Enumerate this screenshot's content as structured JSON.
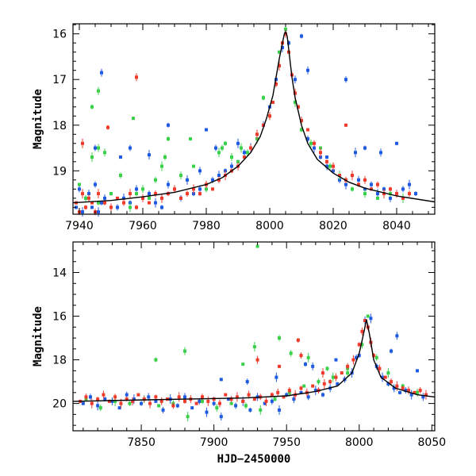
{
  "chart_data": [
    {
      "type": "scatter",
      "panel": "top",
      "xlim": [
        7938,
        8052
      ],
      "ylim": [
        19.95,
        15.78
      ],
      "y_inverted": true,
      "xlabel": "",
      "ylabel": "Magnitude",
      "x_ticks": [
        7940,
        7960,
        7980,
        8000,
        8020,
        8040
      ],
      "y_ticks": [
        16,
        17,
        18,
        19
      ],
      "model_curve": {
        "x": [
          7938,
          7950,
          7960,
          7970,
          7980,
          7985,
          7990,
          7994,
          7997,
          7999,
          8001,
          8002,
          8003,
          8004,
          8004.6,
          8005,
          8005.5,
          8006,
          8007,
          8008,
          8010,
          8012,
          8015,
          8020,
          8025,
          8030,
          8040,
          8052
        ],
        "y": [
          19.7,
          19.65,
          19.57,
          19.47,
          19.3,
          19.15,
          18.9,
          18.6,
          18.25,
          17.85,
          17.35,
          16.95,
          16.55,
          16.2,
          16.0,
          15.95,
          16.05,
          16.35,
          16.95,
          17.4,
          18.0,
          18.4,
          18.75,
          19.05,
          19.25,
          19.38,
          19.55,
          19.68
        ]
      },
      "series": [
        {
          "name": "blue",
          "color": "#1f5be0",
          "x": [
            7939,
            7940,
            7941,
            7942,
            7943,
            7944,
            7945,
            7946,
            7947,
            7948,
            7950,
            7952,
            7954,
            7956,
            7958,
            7960,
            7962,
            7964,
            7966,
            7968,
            7970,
            7972,
            7974,
            7976,
            7978,
            7980,
            7982,
            7984,
            7986,
            7988,
            7990,
            7992,
            7994,
            7996,
            7998,
            8000,
            8002,
            8004,
            8006,
            8008,
            8010,
            8012,
            8014,
            8016,
            8018,
            8020,
            8022,
            8024,
            8026,
            8028,
            8030,
            8032,
            8034,
            8036,
            8038,
            8040,
            8042,
            8044,
            8046,
            7947,
            7953,
            7956,
            7962,
            7968,
            7978,
            7980,
            7983,
            7990,
            8010,
            8012,
            8018,
            8024,
            8027,
            8030,
            8035,
            8040,
            7945
          ],
          "y": [
            19.8,
            19.4,
            19.9,
            19.6,
            19.5,
            19.8,
            19.3,
            19.9,
            19.7,
            19.6,
            19.5,
            19.8,
            19.6,
            19.7,
            19.4,
            19.6,
            19.5,
            19.7,
            19.8,
            19.3,
            19.4,
            19.6,
            19.2,
            19.5,
            19.4,
            19.3,
            19.2,
            19.1,
            19.0,
            18.9,
            18.8,
            18.6,
            18.5,
            18.3,
            18.0,
            17.6,
            17.0,
            16.3,
            16.2,
            17.0,
            17.9,
            18.3,
            18.5,
            18.7,
            18.9,
            19.0,
            19.2,
            19.3,
            19.1,
            19.2,
            19.4,
            19.3,
            19.5,
            19.4,
            19.6,
            19.5,
            19.4,
            19.3,
            19.5,
            16.85,
            18.7,
            18.5,
            18.65,
            18.0,
            19.0,
            18.1,
            18.5,
            18.4,
            16.05,
            16.8,
            18.7,
            17.0,
            18.6,
            18.5,
            18.6,
            18.4,
            18.5
          ]
        },
        {
          "name": "green",
          "color": "#39d04a",
          "x": [
            7940,
            7942,
            7944,
            7946,
            7948,
            7950,
            7953,
            7956,
            7958,
            7960,
            7962,
            7964,
            7966,
            7968,
            7972,
            7976,
            7980,
            7984,
            7986,
            7988,
            7990,
            7993,
            7996,
            7998,
            8000,
            8003,
            8005,
            8008,
            8010,
            8013,
            8016,
            8019,
            8022,
            8026,
            8030,
            8034,
            8038,
            8042,
            7944,
            7946,
            7957,
            7985,
            7991,
            7998,
            7946,
            7975,
            7967
          ],
          "y": [
            19.3,
            19.6,
            18.7,
            19.7,
            18.6,
            19.5,
            19.1,
            19.8,
            19.5,
            19.4,
            19.6,
            19.2,
            18.9,
            18.3,
            19.1,
            18.9,
            19.4,
            18.6,
            18.4,
            18.7,
            18.8,
            18.6,
            18.3,
            17.4,
            17.8,
            16.4,
            15.9,
            17.5,
            18.1,
            18.4,
            18.5,
            18.9,
            19.1,
            19.4,
            19.5,
            19.6,
            19.5,
            19.6,
            17.6,
            17.25,
            17.85,
            18.5,
            18.5,
            17.4,
            18.5,
            18.3,
            18.7
          ]
        },
        {
          "name": "red",
          "color": "#ef3b2c",
          "x": [
            7939,
            7940,
            7941,
            7942,
            7943,
            7944,
            7945,
            7946,
            7948,
            7950,
            7952,
            7954,
            7956,
            7958,
            7960,
            7962,
            7964,
            7966,
            7968,
            7970,
            7972,
            7974,
            7976,
            7978,
            7980,
            7982,
            7984,
            7986,
            7988,
            7990,
            7992,
            7994,
            7996,
            7998,
            8000,
            8001,
            8002,
            8003,
            8004,
            8005,
            8006,
            8007,
            8008,
            8009,
            8010,
            8012,
            8014,
            8016,
            8018,
            8020,
            8022,
            8024,
            8026,
            8028,
            8030,
            8032,
            8034,
            8036,
            8038,
            8040,
            8042,
            8044,
            7941,
            7949,
            7958,
            8024
          ],
          "y": [
            19.7,
            19.9,
            19.5,
            19.8,
            19.6,
            19.7,
            19.9,
            19.5,
            19.7,
            19.8,
            19.6,
            19.7,
            19.5,
            19.8,
            19.6,
            19.7,
            19.5,
            19.6,
            19.5,
            19.4,
            19.6,
            19.5,
            19.4,
            19.5,
            19.3,
            19.4,
            19.2,
            19.1,
            19.0,
            18.9,
            18.7,
            18.5,
            18.2,
            18.0,
            17.8,
            17.5,
            17.1,
            16.7,
            16.2,
            16.0,
            16.4,
            16.9,
            17.3,
            17.6,
            17.9,
            18.1,
            18.4,
            18.6,
            18.8,
            18.9,
            19.1,
            19.2,
            19.1,
            19.3,
            19.2,
            19.4,
            19.3,
            19.5,
            19.4,
            19.5,
            19.6,
            19.5,
            18.4,
            18.05,
            16.95,
            18.0
          ]
        }
      ]
    },
    {
      "type": "scatter",
      "panel": "bottom",
      "xlim": [
        7803,
        8052
      ],
      "ylim": [
        21.25,
        12.6
      ],
      "y_inverted": true,
      "xlabel": "HJD−2450000",
      "ylabel": "Magnitude",
      "x_ticks": [
        7850,
        7900,
        7950,
        8000,
        8050
      ],
      "y_ticks": [
        14,
        16,
        18,
        20
      ],
      "model_curve": {
        "x": [
          7803,
          7840,
          7880,
          7920,
          7950,
          7970,
          7985,
          7995,
          8000,
          8003,
          8005,
          8007,
          8010,
          8015,
          8025,
          8040,
          8052
        ],
        "y": [
          19.9,
          19.85,
          19.8,
          19.75,
          19.65,
          19.45,
          19.2,
          18.6,
          17.7,
          16.8,
          16.15,
          16.8,
          18.0,
          18.8,
          19.3,
          19.6,
          19.7
        ]
      },
      "series": [
        {
          "name": "blue",
          "color": "#1f5be0",
          "x": [
            7810,
            7815,
            7820,
            7825,
            7830,
            7835,
            7840,
            7845,
            7850,
            7855,
            7860,
            7865,
            7870,
            7875,
            7880,
            7885,
            7890,
            7895,
            7900,
            7905,
            7910,
            7915,
            7920,
            7925,
            7930,
            7935,
            7940,
            7945,
            7950,
            7955,
            7960,
            7965,
            7970,
            7975,
            7980,
            7985,
            7990,
            7995,
            8000,
            8004,
            8008,
            8012,
            8016,
            8020,
            8024,
            8028,
            8032,
            8036,
            8040,
            8044,
            7905,
            7923,
            7943,
            7963,
            7968,
            7984,
            7998,
            8008,
            8022,
            8026,
            8040
          ],
          "y": [
            20.0,
            19.7,
            20.1,
            19.8,
            19.9,
            20.2,
            19.6,
            19.8,
            20.0,
            19.7,
            19.9,
            20.3,
            19.8,
            20.1,
            19.7,
            20.2,
            19.9,
            20.4,
            20.0,
            20.6,
            19.8,
            20.1,
            19.9,
            20.3,
            19.7,
            20.0,
            19.9,
            20.3,
            19.6,
            19.8,
            19.5,
            19.7,
            19.4,
            19.6,
            19.3,
            19.1,
            18.9,
            18.6,
            17.8,
            16.2,
            17.2,
            18.3,
            18.8,
            19.1,
            19.3,
            19.5,
            19.4,
            19.6,
            19.5,
            19.7,
            18.9,
            19.0,
            18.8,
            18.2,
            18.3,
            18.0,
            17.9,
            16.1,
            17.6,
            16.9,
            18.5
          ]
        },
        {
          "name": "green",
          "color": "#39d04a",
          "x": [
            7812,
            7822,
            7832,
            7842,
            7852,
            7862,
            7872,
            7882,
            7892,
            7902,
            7912,
            7922,
            7932,
            7942,
            7952,
            7962,
            7972,
            7982,
            7992,
            8002,
            8006,
            8012,
            8020,
            8030,
            8040,
            7930,
            7945,
            7928,
            7860,
            7880,
            7920,
            7953,
            7965,
            7978,
            7992
          ],
          "y": [
            19.8,
            20.2,
            19.9,
            20.0,
            19.8,
            20.1,
            20.0,
            20.6,
            19.9,
            20.2,
            20.0,
            20.1,
            20.3,
            19.8,
            19.5,
            19.2,
            19.0,
            18.8,
            18.4,
            17.3,
            16.0,
            17.9,
            18.6,
            19.2,
            19.5,
            12.8,
            17.0,
            17.4,
            18.0,
            17.6,
            18.2,
            17.7,
            17.9,
            18.4,
            18.6
          ]
        },
        {
          "name": "red",
          "color": "#ef3b2c",
          "x": [
            7808,
            7812,
            7816,
            7820,
            7824,
            7828,
            7832,
            7836,
            7840,
            7844,
            7848,
            7852,
            7856,
            7860,
            7864,
            7868,
            7872,
            7876,
            7880,
            7884,
            7888,
            7892,
            7896,
            7900,
            7904,
            7908,
            7912,
            7916,
            7920,
            7924,
            7928,
            7932,
            7936,
            7940,
            7944,
            7948,
            7952,
            7956,
            7960,
            7964,
            7968,
            7972,
            7976,
            7980,
            7984,
            7988,
            7992,
            7996,
            8000,
            8002,
            8004,
            8006,
            8008,
            8010,
            8014,
            8018,
            8022,
            8026,
            8030,
            8034,
            8038,
            8042,
            8046,
            7958,
            7930,
            7945,
            7960,
            7975
          ],
          "y": [
            19.9,
            19.7,
            20.0,
            19.8,
            19.6,
            19.9,
            19.7,
            20.0,
            19.8,
            19.9,
            19.6,
            19.8,
            20.0,
            19.7,
            19.9,
            19.8,
            20.1,
            19.7,
            19.9,
            19.8,
            20.0,
            19.7,
            19.9,
            19.8,
            20.0,
            19.6,
            19.8,
            19.7,
            19.9,
            19.6,
            19.8,
            19.7,
            19.9,
            19.6,
            19.5,
            19.7,
            19.4,
            19.6,
            19.3,
            19.5,
            19.2,
            19.4,
            19.1,
            19.0,
            18.8,
            18.6,
            18.3,
            18.0,
            17.3,
            16.7,
            16.2,
            16.5,
            17.2,
            17.8,
            18.4,
            18.8,
            19.0,
            19.2,
            19.3,
            19.4,
            19.5,
            19.4,
            19.6,
            17.1,
            18.0,
            18.3,
            17.8,
            18.6
          ]
        }
      ]
    }
  ]
}
